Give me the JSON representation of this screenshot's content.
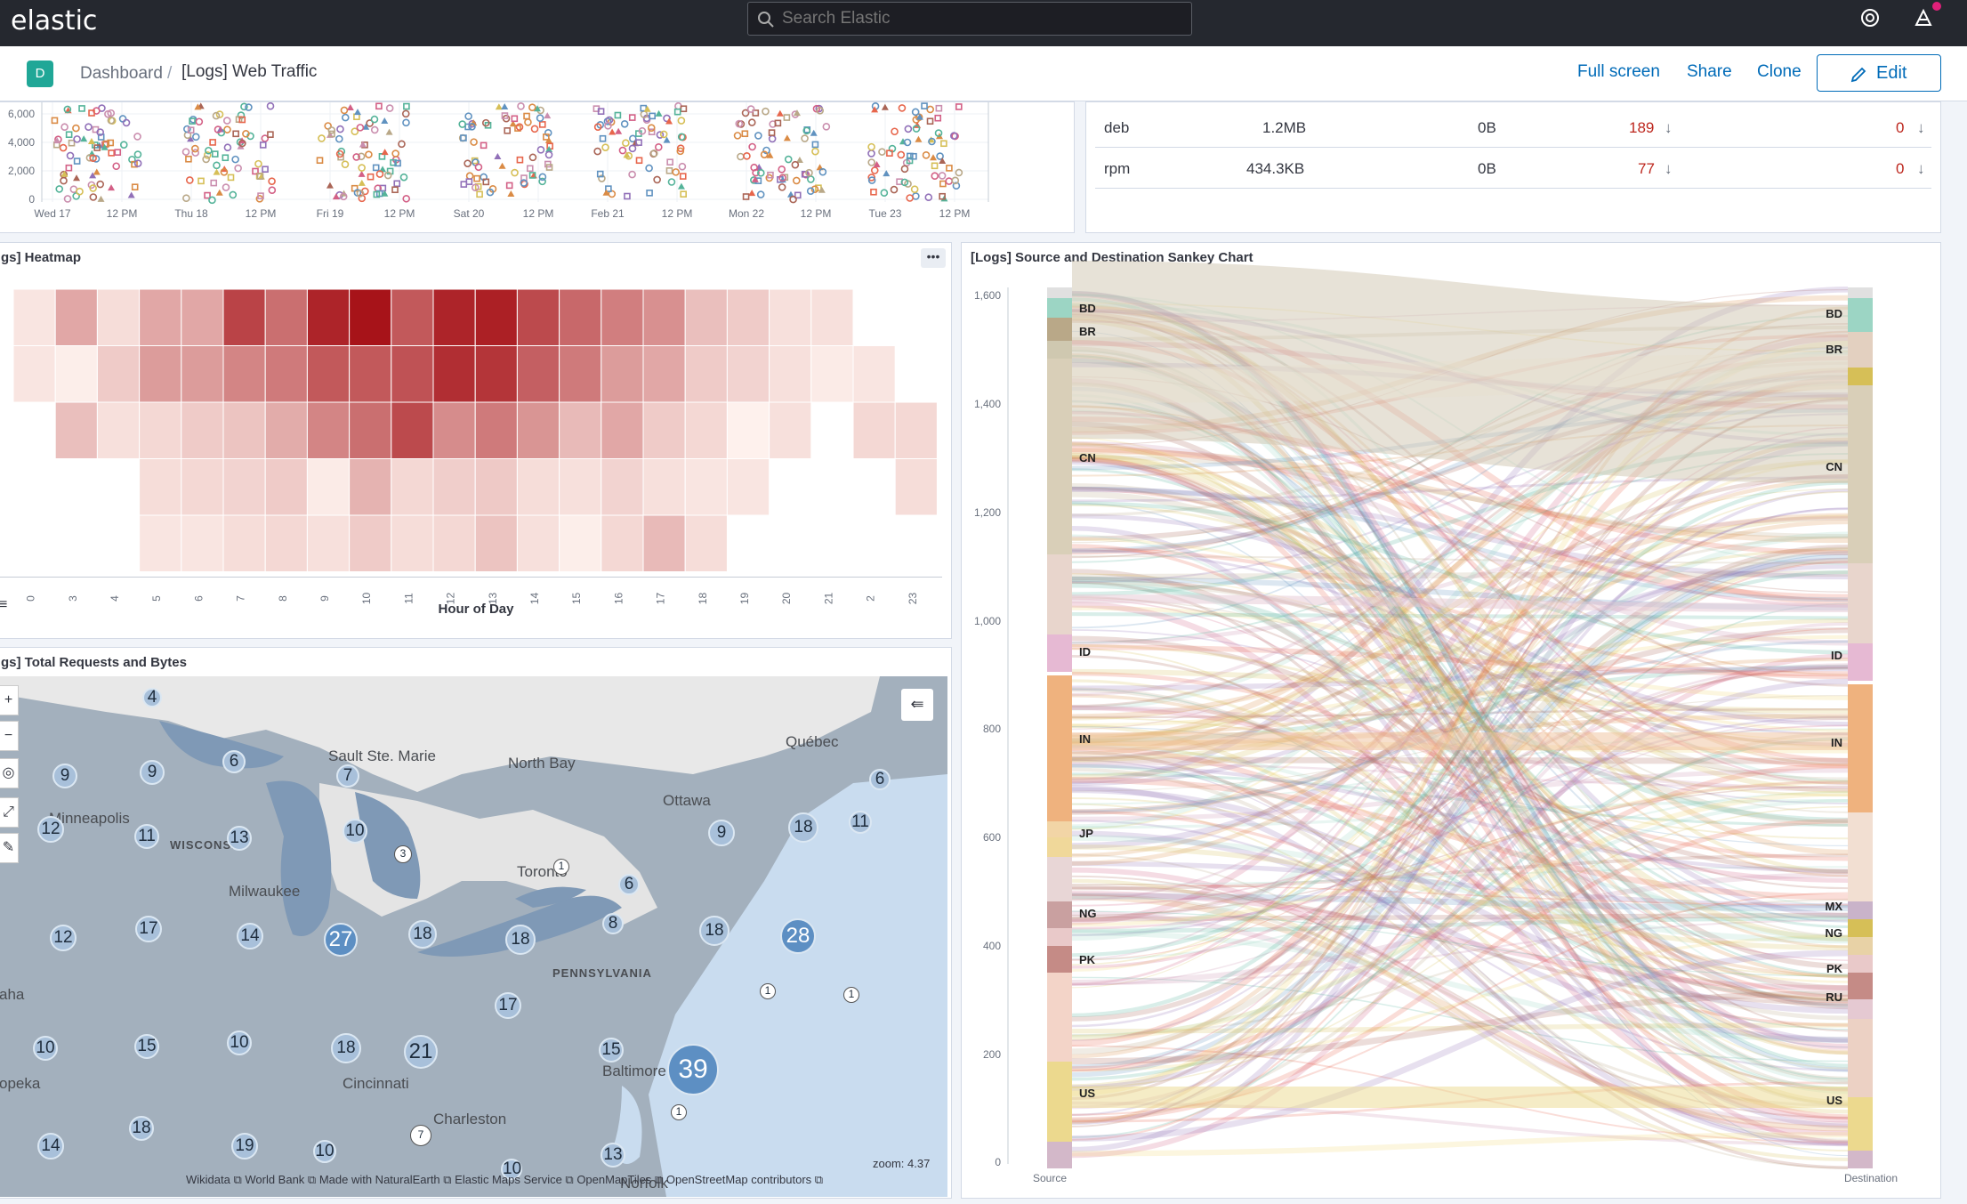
{
  "header": {
    "logo": "elastic",
    "search_placeholder": "Search Elastic",
    "help_icon": "help-icon",
    "news_icon": "newsfeed-icon"
  },
  "subbar": {
    "avatar": "D",
    "breadcrumb_parent": "Dashboard",
    "breadcrumb_separator": "/",
    "breadcrumb_current": "[Logs] Web Traffic",
    "fullscreen": "Full screen",
    "share": "Share",
    "clone": "Clone",
    "edit": "Edit"
  },
  "colors": {
    "accent": "#006bb8",
    "danger": "#bd271e",
    "heat_max": "#a50f15"
  },
  "scatter": {
    "y_ticks": [
      "6,000",
      "4,000",
      "2,000",
      "0"
    ],
    "x_ticks": [
      "Wed 17",
      "12 PM",
      "Thu 18",
      "12 PM",
      "Fri 19",
      "12 PM",
      "Sat 20",
      "12 PM",
      "Feb 21",
      "12 PM",
      "Mon 22",
      "12 PM",
      "Tue 23",
      "12 PM"
    ]
  },
  "table": {
    "rows": [
      {
        "name": "deb",
        "bytes": "1.2MB",
        "zero": "0B",
        "count": "189",
        "errors": "0"
      },
      {
        "name": "rpm",
        "bytes": "434.3KB",
        "zero": "0B",
        "count": "77",
        "errors": "0"
      }
    ]
  },
  "heatmap": {
    "title": "gs] Heatmap",
    "xlabel": "Hour of Day",
    "x_ticks": [
      "0",
      "3",
      "4",
      "5",
      "6",
      "7",
      "8",
      "9",
      "10",
      "11",
      "12",
      "13",
      "14",
      "15",
      "16",
      "17",
      "18",
      "19",
      "20",
      "21",
      "2",
      "23"
    ],
    "cells": [
      [
        0.05,
        0.3,
        0.08,
        0.3,
        0.3,
        0.75,
        0.55,
        0.9,
        0.98,
        0.65,
        0.9,
        0.92,
        0.72,
        0.58,
        0.48,
        0.4,
        0.2,
        0.15,
        0.07,
        0.07,
        null,
        null
      ],
      [
        0.05,
        0.02,
        0.15,
        0.35,
        0.35,
        0.45,
        0.5,
        0.65,
        0.65,
        0.68,
        0.85,
        0.82,
        0.62,
        0.5,
        0.35,
        0.3,
        0.15,
        0.12,
        0.07,
        0.03,
        0.05,
        null
      ],
      [
        null,
        0.2,
        0.07,
        0.1,
        0.15,
        0.18,
        0.28,
        0.45,
        0.55,
        0.72,
        0.42,
        0.5,
        0.38,
        0.22,
        0.3,
        0.15,
        0.1,
        0.01,
        0.07,
        null,
        0.1,
        0.1
      ],
      [
        null,
        null,
        null,
        0.08,
        0.1,
        0.12,
        0.15,
        0.03,
        0.25,
        0.1,
        0.14,
        0.16,
        0.08,
        0.07,
        0.12,
        0.07,
        0.05,
        0.05,
        null,
        null,
        null,
        0.08
      ],
      [
        null,
        null,
        null,
        0.05,
        0.05,
        0.08,
        0.1,
        0.07,
        0.15,
        0.08,
        0.1,
        0.18,
        0.07,
        0.02,
        0.1,
        0.22,
        0.08,
        null,
        null,
        null,
        null,
        null
      ]
    ]
  },
  "map": {
    "title": "gs] Total Requests and Bytes",
    "zoom_label": "zoom: 4.37",
    "attribution": "Wikidata ⧉ World Bank ⧉ Made with NaturalEarth ⧉ Elastic Maps Service ⧉ OpenMapTiles ⧉ OpenStreetMap contributors ⧉",
    "places": [
      "Sault Ste. Marie",
      "North Bay",
      "Québec",
      "Ottawa",
      "Minneapolis",
      "Milwaukee",
      "Toronto",
      "Cincinnati",
      "Charleston",
      "Baltimore",
      "Norfolk",
      "aha",
      "opeka"
    ],
    "regions": [
      "WISCONSIN",
      "PENNSYLVANIA"
    ],
    "clusters": [
      "4",
      "6",
      "9",
      "9",
      "7",
      "6",
      "12",
      "11",
      "13",
      "10",
      "3",
      "9",
      "18",
      "11",
      "1",
      "6",
      "8",
      "12",
      "17",
      "14",
      "27",
      "18",
      "18",
      "18",
      "28",
      "1",
      "1",
      "17",
      "39",
      "10",
      "15",
      "10",
      "18",
      "21",
      "15",
      "1",
      "18",
      "14",
      "19",
      "10",
      "7",
      "10",
      "13"
    ]
  },
  "sankey": {
    "title": "[Logs] Source and Destination Sankey Chart",
    "y_ticks": [
      "1,600",
      "1,400",
      "1,200",
      "1,000",
      "800",
      "600",
      "400",
      "200",
      "0"
    ],
    "source_label": "Source",
    "destination_label": "Destination",
    "source_nodes": [
      "BD",
      "BR",
      "CN",
      "ID",
      "IN",
      "JP",
      "NG",
      "PK",
      "US"
    ],
    "dest_nodes": [
      "BD",
      "BR",
      "CN",
      "ID",
      "IN",
      "MX",
      "NG",
      "PK",
      "RU",
      "US"
    ]
  }
}
